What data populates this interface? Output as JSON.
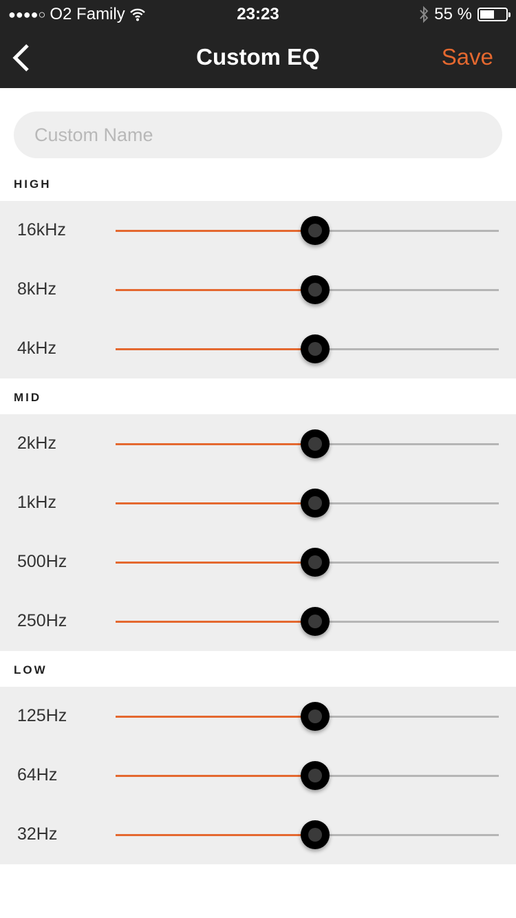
{
  "status": {
    "carrier": "O2 Family",
    "signal": "●●●●○",
    "time": "23:23",
    "battery": "55 %",
    "battery_level": 0.55
  },
  "nav": {
    "title": "Custom EQ",
    "save": "Save",
    "accent": "#e4682f"
  },
  "name_input": {
    "placeholder": "Custom Name",
    "value": ""
  },
  "sections": [
    {
      "title": "HIGH",
      "bands": [
        {
          "label": "16kHz",
          "value": 0.52
        },
        {
          "label": "8kHz",
          "value": 0.52
        },
        {
          "label": "4kHz",
          "value": 0.52
        }
      ]
    },
    {
      "title": "MID",
      "bands": [
        {
          "label": "2kHz",
          "value": 0.52
        },
        {
          "label": "1kHz",
          "value": 0.52
        },
        {
          "label": "500Hz",
          "value": 0.52
        },
        {
          "label": "250Hz",
          "value": 0.52
        }
      ]
    },
    {
      "title": "LOW",
      "bands": [
        {
          "label": "125Hz",
          "value": 0.52
        },
        {
          "label": "64Hz",
          "value": 0.52
        },
        {
          "label": "32Hz",
          "value": 0.52
        }
      ]
    }
  ]
}
